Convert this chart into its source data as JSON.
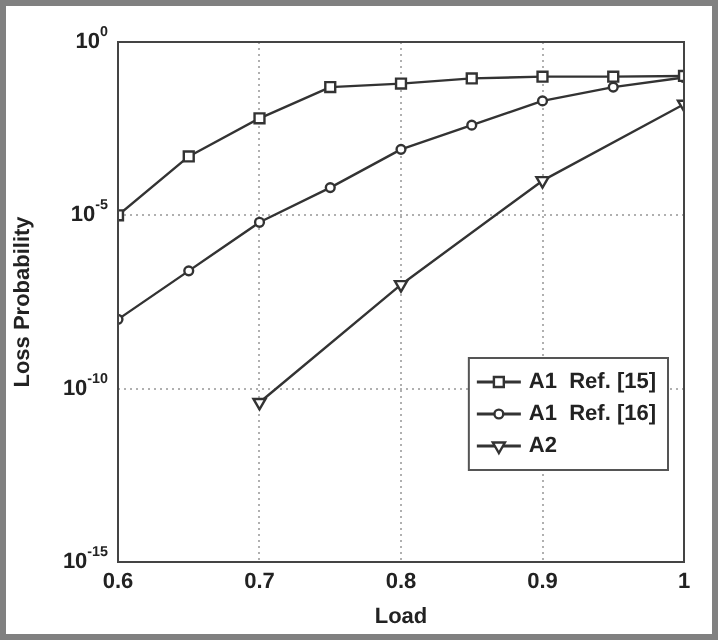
{
  "chart_data": {
    "type": "line",
    "xlabel": "Load",
    "ylabel": "Loss Probability",
    "log": "y",
    "x": [
      0.6,
      0.65,
      0.7,
      0.75,
      0.8,
      0.85,
      0.9,
      0.95,
      1.0
    ],
    "xlim": [
      0.6,
      1
    ],
    "xticks": [
      0.6,
      0.7,
      0.8,
      0.9,
      1
    ],
    "ylim": [
      1e-15,
      1
    ],
    "yticks": [
      {
        "value": 1e-15,
        "label": "10$^{-15}$"
      },
      {
        "value": 1e-10,
        "label": "10$^{-10}$"
      },
      {
        "value": 1e-05,
        "label": "10$^{-5}$"
      },
      {
        "value": 1,
        "label": "10$^{0}$"
      }
    ],
    "grid": true,
    "legend": "bottom right",
    "line_style": "solid",
    "series": [
      {
        "name": "A1  Ref. [15]",
        "color": "#333333",
        "marker": "square",
        "values": [
          1e-05,
          0.0005,
          0.0063,
          0.05,
          0.063,
          0.089,
          0.1,
          0.1,
          0.105
        ]
      },
      {
        "name": "A1  Ref. [16]",
        "color": "#333333",
        "marker": "circle",
        "values": [
          1e-08,
          2.5e-07,
          6.3e-06,
          6.3e-05,
          0.0008,
          0.004,
          0.02,
          0.05,
          0.095
        ]
      },
      {
        "name": "A2",
        "color": "#333333",
        "marker": "triangle",
        "x": [
          0.7,
          0.8,
          0.9,
          1.0
        ],
        "values": [
          4e-11,
          1e-07,
          0.0001,
          0.016
        ]
      }
    ]
  }
}
